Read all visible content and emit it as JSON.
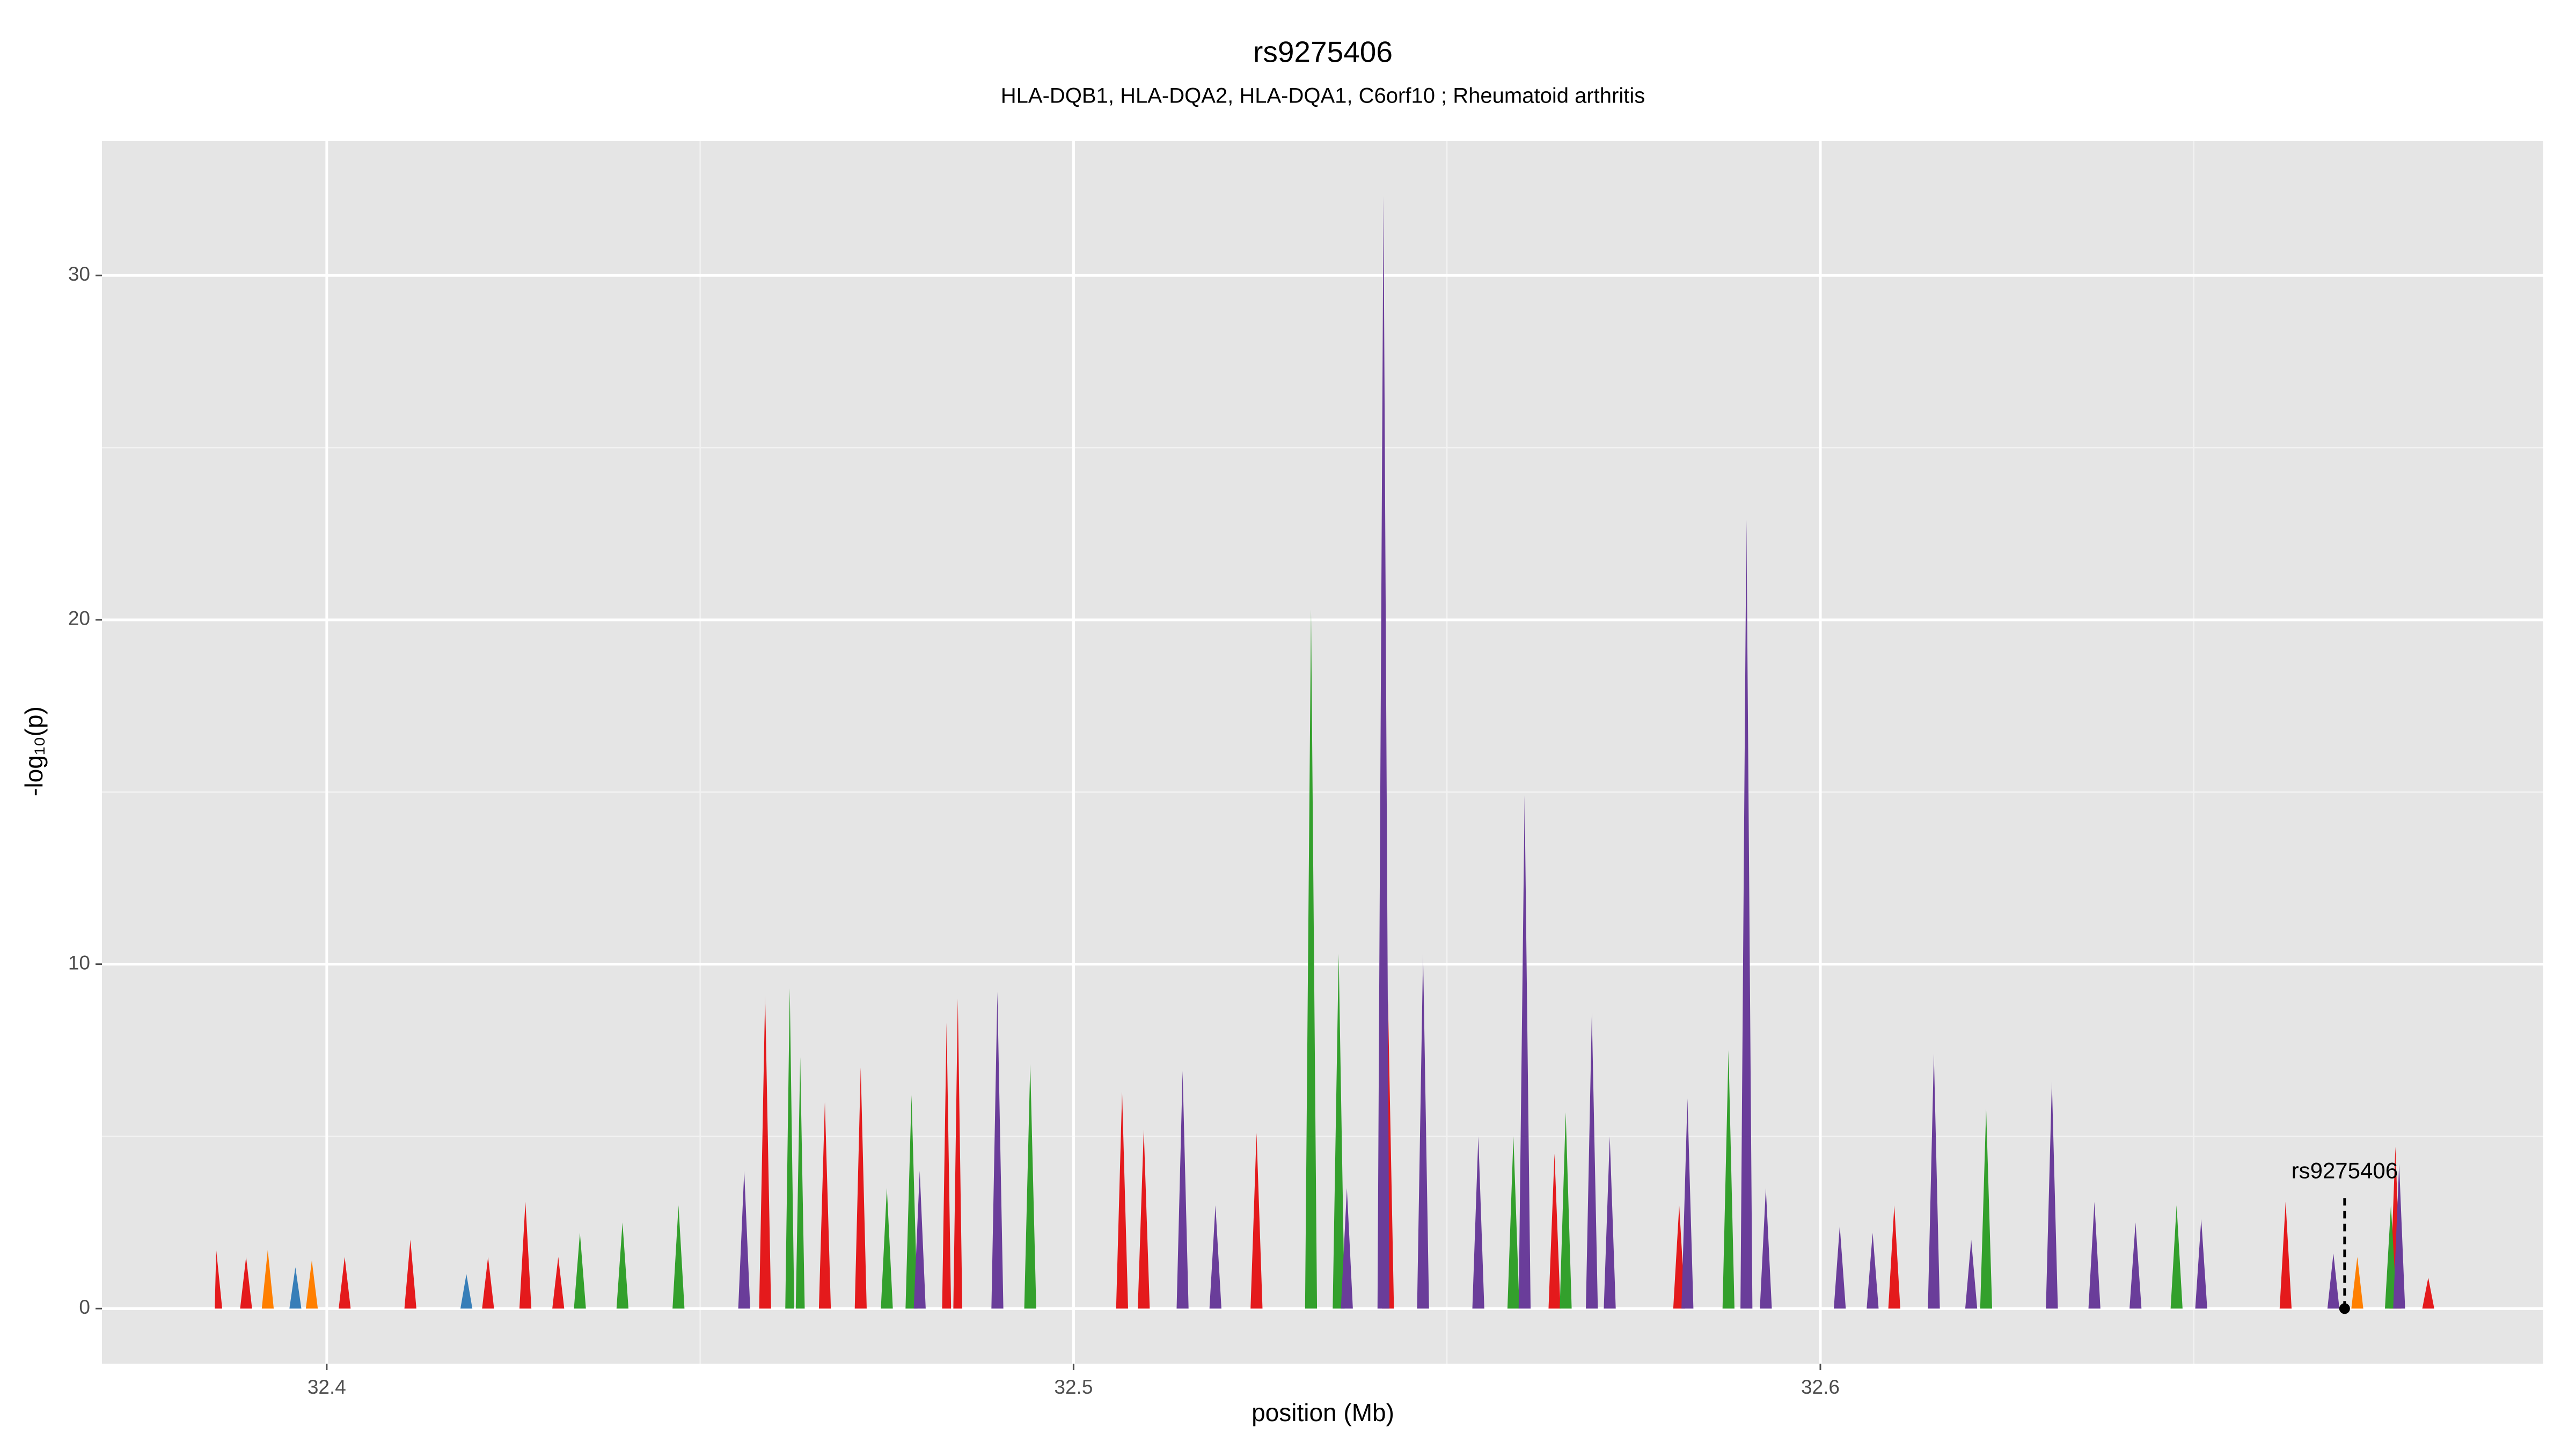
{
  "chart_data": {
    "type": "area",
    "title": "rs9275406",
    "subtitle": "HLA-DQB1, HLA-DQA2, HLA-DQA1, C6orf10 ; Rheumatoid arthritis",
    "xlabel": "position (Mb)",
    "ylabel": "-log₁₀(p)",
    "xlim": [
      32.3699,
      32.6968
    ],
    "ylim": [
      -1.6,
      33.9
    ],
    "xticks": [
      32.4,
      32.5,
      32.6
    ],
    "yticks": [
      0,
      10,
      20,
      30
    ],
    "grid": true,
    "series": [
      {
        "color": "#e41a1c",
        "x": [
          32.385,
          32.3852,
          32.386,
          32.3884,
          32.3892,
          32.39,
          32.4016,
          32.4024,
          32.4032,
          32.4104,
          32.4112,
          32.412,
          32.4208,
          32.4216,
          32.4224,
          32.4258,
          32.4266,
          32.4274,
          32.4302,
          32.431,
          32.4318,
          32.4579,
          32.4587,
          32.4595,
          32.4659,
          32.4667,
          32.4675,
          32.4707,
          32.4715,
          32.4723,
          32.4824,
          32.483,
          32.4836,
          32.4839,
          32.4845,
          32.4851,
          32.5057,
          32.5065,
          32.5073,
          32.5086,
          32.5094,
          32.5102,
          32.5237,
          32.5245,
          32.5253,
          32.5413,
          32.5421,
          32.5429,
          32.5636,
          32.5644,
          32.5652,
          32.5803,
          32.5811,
          32.5819,
          32.6091,
          32.6099,
          32.6107,
          32.6615,
          32.6623,
          32.6631,
          32.6762,
          32.677,
          32.6778,
          32.6806,
          32.6814,
          32.6822
        ],
        "values": [
          0,
          1.7,
          0,
          0,
          1.5,
          0,
          0,
          1.5,
          0,
          0,
          2,
          0,
          0,
          1.5,
          0,
          0,
          3.1,
          0,
          0,
          1.5,
          0,
          0,
          9.1,
          0,
          0,
          6,
          0,
          0,
          7,
          0,
          0,
          8.3,
          0,
          0,
          9,
          0,
          0,
          6.3,
          0,
          0,
          5.2,
          0,
          0,
          5.1,
          0,
          0,
          9,
          0,
          0,
          4.5,
          0,
          0,
          3,
          0,
          0,
          3,
          0,
          0,
          3.1,
          0,
          0,
          4.7,
          0,
          0,
          0.9,
          0
        ]
      },
      {
        "color": "#ff7f00",
        "x": [
          32.3913,
          32.3921,
          32.3929,
          32.3972,
          32.398,
          32.3988,
          32.6711,
          32.6719,
          32.6727
        ],
        "values": [
          0,
          1.7,
          0,
          0,
          1.4,
          0,
          0,
          1.5,
          0
        ]
      },
      {
        "color": "#377eb8",
        "x": [
          32.395,
          32.3958,
          32.3966,
          32.4179,
          32.4187,
          32.4195
        ],
        "values": [
          0,
          1.2,
          0,
          0,
          1,
          0
        ]
      },
      {
        "color": "#33a02c",
        "x": [
          32.4331,
          32.4339,
          32.4347,
          32.4388,
          32.4396,
          32.4404,
          32.4463,
          32.4471,
          32.4479,
          32.4614,
          32.462,
          32.4626,
          32.4628,
          32.4634,
          32.464,
          32.4742,
          32.475,
          32.4758,
          32.4775,
          32.4783,
          32.4791,
          32.4934,
          32.4942,
          32.495,
          32.531,
          32.5318,
          32.5326,
          32.5347,
          32.5355,
          32.5363,
          32.5581,
          32.5589,
          32.5597,
          32.5651,
          32.5659,
          32.5667,
          32.5869,
          32.5877,
          32.5885,
          32.6214,
          32.6222,
          32.623,
          32.6469,
          32.6477,
          32.6485,
          32.6756,
          32.6764,
          32.6772
        ],
        "values": [
          0,
          2.2,
          0,
          0,
          2.5,
          0,
          0,
          3,
          0,
          0,
          9.3,
          0,
          0,
          7.3,
          0,
          0,
          3.5,
          0,
          0,
          6.2,
          0,
          0,
          7.1,
          0,
          0,
          20.3,
          0,
          0,
          10.3,
          0,
          0,
          5,
          0,
          0,
          5.7,
          0,
          0,
          7.5,
          0,
          0,
          5.8,
          0,
          0,
          3,
          0,
          0,
          3,
          0
        ]
      },
      {
        "color": "#6a3d9a",
        "x": [
          32.4551,
          32.4559,
          32.4567,
          32.4786,
          32.4794,
          32.4802,
          32.489,
          32.4898,
          32.4906,
          32.5138,
          32.5146,
          32.5154,
          32.5182,
          32.519,
          32.5198,
          32.5358,
          32.5366,
          32.5374,
          32.5407,
          32.5415,
          32.5423,
          32.546,
          32.5468,
          32.5476,
          32.5534,
          32.5542,
          32.555,
          32.5596,
          32.5604,
          32.5612,
          32.5686,
          32.5694,
          32.5702,
          32.571,
          32.5718,
          32.5726,
          32.5814,
          32.5822,
          32.583,
          32.5893,
          32.5901,
          32.5909,
          32.5919,
          32.5927,
          32.5935,
          32.6018,
          32.6026,
          32.6034,
          32.6062,
          32.607,
          32.6078,
          32.6144,
          32.6152,
          32.616,
          32.6194,
          32.6202,
          32.621,
          32.6302,
          32.631,
          32.6318,
          32.6359,
          32.6367,
          32.6375,
          32.6414,
          32.6422,
          32.643,
          32.6502,
          32.651,
          32.6518,
          32.6679,
          32.6687,
          32.6695,
          32.6767,
          32.6775,
          32.6783
        ],
        "values": [
          0,
          4,
          0,
          0,
          4,
          0,
          0,
          9.2,
          0,
          0,
          6.9,
          0,
          0,
          3,
          0,
          0,
          3.5,
          0,
          0,
          32.3,
          0,
          0,
          10.3,
          0,
          0,
          5,
          0,
          0,
          14.9,
          0,
          0,
          8.6,
          0,
          0,
          5,
          0,
          0,
          6.1,
          0,
          0,
          22.9,
          0,
          0,
          3.5,
          0,
          0,
          2.4,
          0,
          0,
          2.2,
          0,
          0,
          7.4,
          0,
          0,
          2,
          0,
          0,
          6.6,
          0,
          0,
          3.1,
          0,
          0,
          2.5,
          0,
          0,
          2.6,
          0,
          0,
          1.6,
          0,
          0,
          4.2,
          0
        ]
      }
    ],
    "annotations": [
      {
        "text": "rs9275406",
        "x": 32.6702,
        "y": 0
      }
    ]
  }
}
